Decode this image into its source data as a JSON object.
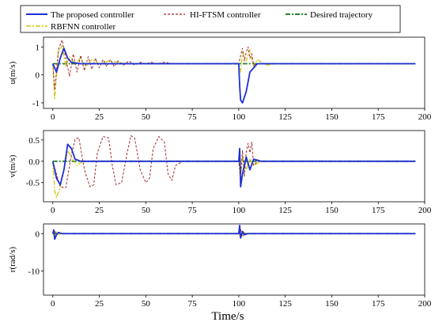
{
  "chart_data": {
    "type": "line",
    "xlabel": "Time/s",
    "legend": {
      "placement": "top",
      "entries": [
        {
          "name": "The proposed controller",
          "color": "#1f2fd6",
          "style": "solid"
        },
        {
          "name": "HI-FTSM controller",
          "color": "#a52a2a",
          "style": "dashed"
        },
        {
          "name": "Desired trajectory",
          "color": "#2e7d32",
          "style": "dashdot"
        },
        {
          "name": "RBFNN controller",
          "color": "#c8c800",
          "style": "dashdot"
        }
      ]
    },
    "xlim": [
      -5,
      200
    ],
    "xticks": [
      "0",
      "25",
      "50",
      "75",
      "100",
      "125",
      "150",
      "175",
      "200"
    ],
    "subplots": [
      {
        "ylabel": "u(m/s)",
        "ylim": [
          -1.2,
          1.35
        ],
        "yticks": [
          "-1",
          "0",
          "1"
        ],
        "desired": {
          "x": [
            0,
            195
          ],
          "y": [
            0.4,
            0.4
          ]
        },
        "series": {
          "proposed": {
            "x": [
              0,
              2,
              4,
              6,
              8,
              10,
              15,
              100,
              100.5,
              101,
              102,
              104,
              106,
              110,
              195
            ],
            "y": [
              0.4,
              0.1,
              0.6,
              0.95,
              0.6,
              0.45,
              0.4,
              0.4,
              -0.4,
              -0.9,
              -1.0,
              -0.6,
              0.1,
              0.4,
              0.4
            ]
          },
          "hiftsm": {
            "x": [
              0,
              1,
              3,
              5,
              7,
              9,
              11,
              13,
              15,
              17,
              19,
              21,
              23,
              25,
              27,
              29,
              31,
              33,
              35,
              38,
              41,
              44,
              47,
              50,
              53,
              56,
              60,
              65,
              70,
              100,
              101,
              102,
              103,
              104,
              105,
              106,
              107,
              108,
              110,
              195
            ],
            "y": [
              0.4,
              -0.55,
              0.9,
              1.25,
              0.6,
              -0.05,
              0.75,
              0.1,
              0.7,
              0.15,
              0.65,
              0.2,
              0.6,
              0.25,
              0.55,
              0.3,
              0.55,
              0.3,
              0.5,
              0.35,
              0.5,
              0.35,
              0.45,
              0.4,
              0.45,
              0.4,
              0.45,
              0.4,
              0.4,
              0.4,
              0.7,
              0.95,
              0.5,
              0.8,
              1.0,
              0.6,
              0.75,
              0.35,
              0.4,
              0.4
            ]
          },
          "rbfnn": {
            "x": [
              0,
              1,
              3,
              5,
              7,
              9,
              12,
              15,
              18,
              21,
              25,
              30,
              40,
              60,
              100,
              101,
              102,
              104,
              106,
              108,
              110,
              115,
              120,
              195
            ],
            "y": [
              0.4,
              -0.85,
              0.8,
              1.05,
              0.3,
              0.65,
              0.4,
              0.6,
              0.3,
              0.55,
              0.4,
              0.5,
              0.4,
              0.4,
              0.4,
              0.1,
              0.8,
              0.5,
              0.9,
              0.3,
              0.55,
              0.35,
              0.4,
              0.4
            ]
          }
        }
      },
      {
        "ylabel": "v(m/s)",
        "ylim": [
          -0.95,
          0.72
        ],
        "yticks": [
          "-0.5",
          "0.0",
          "0.5"
        ],
        "desired": {
          "x": [
            0,
            195
          ],
          "y": [
            0,
            0
          ]
        },
        "series": {
          "proposed": {
            "x": [
              0,
              2,
              4,
              6,
              8,
              10,
              12,
              15,
              20,
              100,
              100.5,
              101,
              102,
              104,
              106,
              108,
              112,
              195
            ],
            "y": [
              0,
              -0.4,
              -0.55,
              -0.2,
              0.4,
              0.3,
              0.05,
              0,
              0,
              0,
              0.3,
              -0.6,
              -0.3,
              0.1,
              -0.2,
              0.05,
              0,
              0
            ]
          },
          "hiftsm": {
            "x": [
              0,
              2,
              4,
              7,
              10,
              12,
              14,
              17,
              20,
              22,
              24,
              27,
              30,
              32,
              34,
              37,
              40,
              42,
              44,
              47,
              50,
              52,
              54,
              57,
              60,
              62,
              64,
              66,
              70,
              100,
              101,
              102,
              103,
              104,
              105,
              106,
              107,
              108,
              110,
              195
            ],
            "y": [
              0,
              -0.3,
              -0.6,
              -0.62,
              0.15,
              0.52,
              0.55,
              -0.2,
              -0.6,
              -0.55,
              0.2,
              0.58,
              0.55,
              -0.1,
              -0.55,
              -0.5,
              0.2,
              0.6,
              0.55,
              -0.2,
              -0.5,
              -0.4,
              0.3,
              0.58,
              0.45,
              -0.3,
              -0.45,
              -0.1,
              0,
              0,
              -0.3,
              0.25,
              -0.35,
              0.2,
              0.42,
              0.2,
              0.45,
              -0.1,
              0,
              0
            ]
          },
          "rbfnn": {
            "x": [
              0,
              1,
              2,
              4,
              6,
              8,
              10,
              13,
              16,
              20,
              100,
              101,
              102,
              104,
              106,
              108,
              112,
              195
            ],
            "y": [
              0,
              -0.7,
              -0.85,
              -0.6,
              -0.2,
              0.25,
              0.1,
              -0.1,
              0,
              0,
              0,
              -0.45,
              0.1,
              -0.2,
              0.05,
              -0.1,
              0,
              0
            ]
          }
        }
      },
      {
        "ylabel": "r(rad/s)",
        "ylim": [
          -16.5,
          2.6
        ],
        "yticks": [
          "-10",
          "0"
        ],
        "desired": {
          "x": [
            0,
            195
          ],
          "y": [
            0,
            0
          ]
        },
        "series": {
          "proposed": {
            "x": [
              0,
              0.5,
              1,
              2,
              3,
              5,
              100,
              100.5,
              101,
              102,
              103,
              105,
              195
            ],
            "y": [
              0,
              1.0,
              -1.5,
              -0.3,
              0.3,
              0,
              0,
              2.2,
              -1.2,
              0.6,
              -0.3,
              0,
              0
            ]
          },
          "hiftsm": {
            "x": [
              0,
              1,
              2,
              3,
              5,
              100,
              101,
              102,
              103,
              195
            ],
            "y": [
              0,
              0.8,
              -0.5,
              0.3,
              0,
              0,
              1.2,
              -0.8,
              0,
              0
            ]
          },
          "rbfnn": {
            "x": [
              0,
              1,
              2,
              3,
              5,
              100,
              101,
              102,
              104,
              195
            ],
            "y": [
              0,
              -0.6,
              0.5,
              -0.2,
              0,
              0,
              -1.0,
              0.6,
              0,
              0
            ]
          }
        }
      }
    ]
  }
}
